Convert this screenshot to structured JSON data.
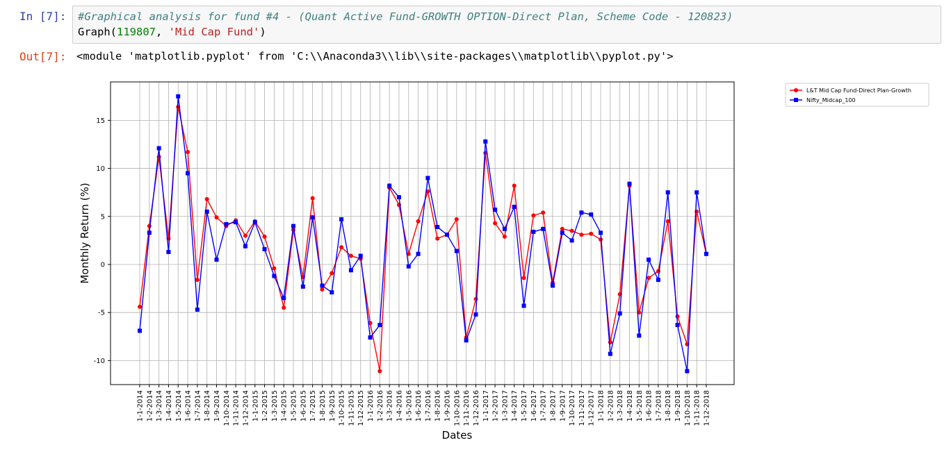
{
  "cell_in": {
    "prompt": "In [7]:",
    "code_comment": "#Graphical analysis for fund #4 - (Quant Active Fund-GROWTH OPTION-Direct Plan, Scheme Code - 120823)",
    "code_fn": "Graph(",
    "code_num": "119807",
    "code_sep": ", ",
    "code_str": "'Mid Cap Fund'",
    "code_close": ")"
  },
  "cell_out": {
    "prompt": "Out[7]:",
    "text": "<module 'matplotlib.pyplot' from 'C:\\\\Anaconda3\\\\lib\\\\site-packages\\\\matplotlib\\\\pyplot.py'>"
  },
  "chart_data": {
    "type": "line",
    "xlabel": "Dates",
    "ylabel": "Monthly Return  (%)",
    "ylim": [
      -12.5,
      19
    ],
    "yticks": [
      -10,
      -5,
      0,
      5,
      10,
      15
    ],
    "grid": true,
    "legend_position": "outside-top-right",
    "categories": [
      "1-1-2014",
      "1-2-2014",
      "1-3-2014",
      "1-4-2014",
      "1-5-2014",
      "1-6-2014",
      "1-7-2014",
      "1-8-2014",
      "1-9-2014",
      "1-10-2014",
      "1-11-2014",
      "1-12-2014",
      "1-1-2015",
      "1-2-2015",
      "1-3-2015",
      "1-4-2015",
      "1-5-2015",
      "1-6-2015",
      "1-7-2015",
      "1-8-2015",
      "1-9-2015",
      "1-10-2015",
      "1-11-2015",
      "1-12-2015",
      "1-1-2016",
      "1-2-2016",
      "1-3-2016",
      "1-4-2016",
      "1-5-2016",
      "1-6-2016",
      "1-7-2016",
      "1-8-2016",
      "1-9-2016",
      "1-10-2016",
      "1-11-2016",
      "1-12-2016",
      "1-1-2017",
      "1-2-2017",
      "1-3-2017",
      "1-4-2017",
      "1-5-2017",
      "1-6-2017",
      "1-7-2017",
      "1-8-2017",
      "1-9-2017",
      "1-10-2017",
      "1-11-2017",
      "1-12-2017",
      "1-1-2018",
      "1-2-2018",
      "1-3-2018",
      "1-4-2018",
      "1-5-2018",
      "1-6-2018",
      "1-7-2018",
      "1-8-2018",
      "1-9-2018",
      "1-10-2018",
      "1-11-2018",
      "1-12-2018"
    ],
    "series": [
      {
        "name": "L&T Mid Cap Fund-Direct Plan-Growth",
        "color": "#ff0000",
        "marker": "circle",
        "values": [
          -4.4,
          4.0,
          11.2,
          2.7,
          16.4,
          11.7,
          -1.6,
          6.8,
          4.9,
          4.0,
          4.6,
          3.0,
          4.5,
          2.9,
          -0.4,
          -4.5,
          3.6,
          -1.3,
          6.9,
          -2.6,
          -0.9,
          1.8,
          0.9,
          0.6,
          -6.1,
          -11.1,
          8.0,
          6.2,
          1.1,
          4.5,
          7.6,
          2.7,
          3.1,
          4.7,
          -7.6,
          -3.6,
          11.6,
          4.3,
          2.9,
          8.2,
          -1.4,
          5.1,
          5.4,
          -1.9,
          3.7,
          3.5,
          3.1,
          3.2,
          2.6,
          -8.1,
          -3.1,
          8.2,
          -5.0,
          -1.4,
          -0.7,
          4.5,
          -5.4,
          -8.3,
          5.5,
          1.1
        ]
      },
      {
        "name": "Nifty_Midcap_100",
        "color": "#0000ff",
        "marker": "square",
        "values": [
          -6.9,
          3.3,
          12.1,
          1.3,
          17.5,
          9.5,
          -4.7,
          5.5,
          0.5,
          4.2,
          4.4,
          1.9,
          4.4,
          1.6,
          -1.2,
          -3.5,
          4.0,
          -2.3,
          4.9,
          -2.2,
          -2.9,
          4.7,
          -0.6,
          0.9,
          -7.6,
          -6.3,
          8.2,
          7.0,
          -0.2,
          1.1,
          9.0,
          3.9,
          3.1,
          1.4,
          -7.9,
          -5.2,
          12.8,
          5.7,
          3.7,
          6.0,
          -4.3,
          3.4,
          3.7,
          -2.2,
          3.3,
          2.5,
          5.4,
          5.2,
          3.3,
          -9.3,
          -5.1,
          8.4,
          -7.4,
          0.5,
          -1.6,
          7.5,
          -6.3,
          -11.1,
          7.5,
          1.1
        ]
      }
    ]
  }
}
